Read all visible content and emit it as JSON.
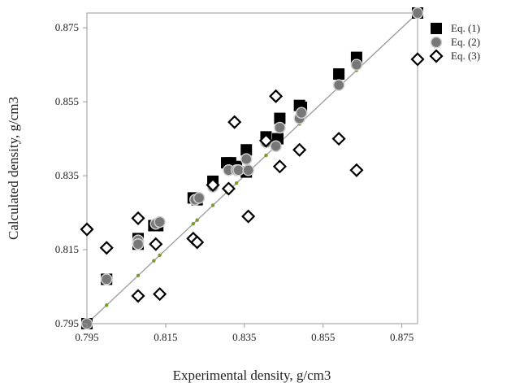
{
  "chart_data": {
    "type": "scatter",
    "xlabel": "Experimental density, g/cm3",
    "ylabel": "Calculated density, g/cm3",
    "xlim": [
      0.795,
      0.879
    ],
    "ylim": [
      0.795,
      0.879
    ],
    "x_ticks": [
      "0.795",
      "0.815",
      "0.835",
      "0.855",
      "0.875"
    ],
    "y_ticks": [
      "0.795",
      "0.815",
      "0.835",
      "0.855",
      "0.875"
    ],
    "tick_values": [
      0.795,
      0.815,
      0.835,
      0.855,
      0.875
    ],
    "grid": false,
    "legend_position": "top-right",
    "parity_line": [
      [
        0.795,
        0.795
      ],
      [
        0.879,
        0.879
      ]
    ],
    "series": [
      {
        "name": "Eq. (1)",
        "marker": "square",
        "color": "#000000",
        "points": [
          [
            0.795,
            0.795
          ],
          [
            0.8,
            0.807
          ],
          [
            0.808,
            0.818
          ],
          [
            0.808,
            0.8165
          ],
          [
            0.812,
            0.8215
          ],
          [
            0.813,
            0.8215
          ],
          [
            0.822,
            0.829
          ],
          [
            0.823,
            0.8285
          ],
          [
            0.827,
            0.8335
          ],
          [
            0.8305,
            0.8385
          ],
          [
            0.8315,
            0.8385
          ],
          [
            0.833,
            0.8375
          ],
          [
            0.8355,
            0.842
          ],
          [
            0.8355,
            0.836
          ],
          [
            0.8405,
            0.8455
          ],
          [
            0.8435,
            0.845
          ],
          [
            0.844,
            0.8505
          ],
          [
            0.849,
            0.854
          ],
          [
            0.8495,
            0.8535
          ],
          [
            0.859,
            0.8625
          ],
          [
            0.8635,
            0.867
          ],
          [
            0.879,
            0.879
          ]
        ]
      },
      {
        "name": "Eq. (2)",
        "marker": "circle",
        "color": "#777777",
        "points": [
          [
            0.795,
            0.795
          ],
          [
            0.8,
            0.807
          ],
          [
            0.808,
            0.8175
          ],
          [
            0.808,
            0.8165
          ],
          [
            0.8125,
            0.822
          ],
          [
            0.8135,
            0.8225
          ],
          [
            0.8225,
            0.8285
          ],
          [
            0.8235,
            0.829
          ],
          [
            0.827,
            0.832
          ],
          [
            0.831,
            0.8365
          ],
          [
            0.833,
            0.8365
          ],
          [
            0.8335,
            0.8365
          ],
          [
            0.8355,
            0.8395
          ],
          [
            0.836,
            0.8365
          ],
          [
            0.8405,
            0.844
          ],
          [
            0.843,
            0.843
          ],
          [
            0.844,
            0.848
          ],
          [
            0.849,
            0.8505
          ],
          [
            0.8495,
            0.852
          ],
          [
            0.859,
            0.8595
          ],
          [
            0.8635,
            0.865
          ],
          [
            0.879,
            0.879
          ]
        ]
      },
      {
        "name": "Eq. (3)",
        "marker": "diamond",
        "color": "#000000",
        "points": [
          [
            0.795,
            0.8205
          ],
          [
            0.8,
            0.8155
          ],
          [
            0.808,
            0.8235
          ],
          [
            0.808,
            0.8025
          ],
          [
            0.8125,
            0.8165
          ],
          [
            0.8135,
            0.803
          ],
          [
            0.822,
            0.818
          ],
          [
            0.823,
            0.817
          ],
          [
            0.827,
            0.8325
          ],
          [
            0.831,
            0.8315
          ],
          [
            0.8325,
            0.8495
          ],
          [
            0.836,
            0.824
          ],
          [
            0.8405,
            0.8445
          ],
          [
            0.843,
            0.8565
          ],
          [
            0.844,
            0.8375
          ],
          [
            0.849,
            0.842
          ],
          [
            0.859,
            0.845
          ],
          [
            0.8635,
            0.8365
          ],
          [
            0.879,
            0.8665
          ]
        ]
      }
    ],
    "reference_points": {
      "marker": "dot",
      "color": "#7a9a2a",
      "points": [
        [
          0.8,
          0.8
        ],
        [
          0.808,
          0.808
        ],
        [
          0.812,
          0.812
        ],
        [
          0.8135,
          0.8135
        ],
        [
          0.822,
          0.822
        ],
        [
          0.823,
          0.823
        ],
        [
          0.827,
          0.827
        ],
        [
          0.8305,
          0.8305
        ],
        [
          0.833,
          0.833
        ],
        [
          0.8355,
          0.8355
        ],
        [
          0.8405,
          0.8405
        ],
        [
          0.843,
          0.843
        ],
        [
          0.8435,
          0.8435
        ],
        [
          0.849,
          0.849
        ],
        [
          0.859,
          0.859
        ],
        [
          0.8635,
          0.8635
        ]
      ]
    }
  }
}
